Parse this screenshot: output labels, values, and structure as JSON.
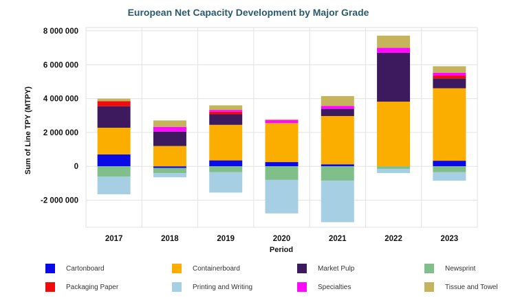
{
  "chart_data": {
    "type": "bar",
    "stacked": true,
    "title": "European Net Capacity Development by Major Grade",
    "xlabel": "Period",
    "ylabel": "Sum of Line TPY (MTPY)",
    "ylim": [
      -3600000,
      8200000
    ],
    "yticks": [
      8000000,
      6000000,
      4000000,
      2000000,
      0,
      -2000000
    ],
    "ytick_labels": [
      "8 000 000",
      "6 000 000",
      "4 000 000",
      "2 000 000",
      "0",
      "-2 000 000"
    ],
    "grid": true,
    "legend_position": "bottom",
    "categories": [
      "2017",
      "2018",
      "2019",
      "2020",
      "2021",
      "2022",
      "2023"
    ],
    "series": [
      {
        "name": "Cartonboard",
        "color": "#0a0ae6",
        "values": [
          700000,
          -100000,
          350000,
          250000,
          120000,
          0,
          330000
        ]
      },
      {
        "name": "Containerboard",
        "color": "#fcae00",
        "values": [
          1580000,
          1200000,
          2100000,
          2300000,
          2850000,
          3820000,
          4280000
        ]
      },
      {
        "name": "Market Pulp",
        "color": "#3d1a5e",
        "values": [
          1270000,
          850000,
          620000,
          0,
          420000,
          2880000,
          580000
        ]
      },
      {
        "name": "Newsprint",
        "color": "#80bf8a",
        "values": [
          -600000,
          -300000,
          -350000,
          -800000,
          -850000,
          -150000,
          -350000
        ]
      },
      {
        "name": "Packaging Paper",
        "color": "#f00c0c",
        "values": [
          300000,
          0,
          150000,
          0,
          0,
          0,
          170000
        ]
      },
      {
        "name": "Printing and Writing",
        "color": "#a6cfe3",
        "values": [
          -1050000,
          -250000,
          -1200000,
          -1980000,
          -2450000,
          -250000,
          -500000
        ]
      },
      {
        "name": "Specialties",
        "color": "#ff09ff",
        "values": [
          0,
          280000,
          110000,
          180000,
          180000,
          300000,
          170000
        ]
      },
      {
        "name": "Tissue and Towel",
        "color": "#c5b45c",
        "values": [
          150000,
          380000,
          270000,
          50000,
          580000,
          720000,
          380000
        ]
      }
    ]
  }
}
